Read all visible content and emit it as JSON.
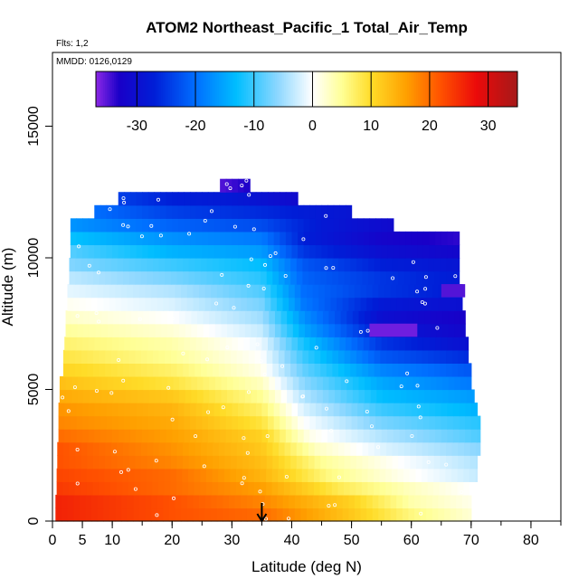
{
  "chart_data": {
    "type": "heatmap",
    "title": "ATOM2 Northeast_Pacific_1 Total_Air_Temp",
    "annotations": {
      "flights": "Flts: 1,2",
      "dates": "MMDD: 0126,0129"
    },
    "xlabel": "Latitude (deg N)",
    "ylabel": "Altitude (m)",
    "xlim": [
      0,
      85
    ],
    "ylim": [
      0,
      17800
    ],
    "x_ticks": [
      "0",
      "5",
      "10",
      "20",
      "30",
      "40",
      "50",
      "60",
      "70",
      "80"
    ],
    "x_tick_values": [
      0,
      5,
      10,
      20,
      30,
      40,
      50,
      60,
      70,
      80
    ],
    "y_ticks": [
      "0",
      "5000",
      "10000",
      "15000"
    ],
    "y_tick_values": [
      0,
      5000,
      10000,
      15000
    ],
    "colorbar": {
      "range": [
        -37,
        35
      ],
      "tick_labels": [
        "-30",
        "-20",
        "-10",
        "0",
        "10",
        "20",
        "30"
      ],
      "tick_values": [
        -30,
        -20,
        -10,
        0,
        10,
        20,
        30
      ]
    },
    "marker_latitude": 35,
    "altitude_rows": [
      {
        "alt": 250,
        "lat_min": 0.5,
        "lat_max": 70,
        "temps": [
          [
            0.5,
            26
          ],
          [
            20,
            22
          ],
          [
            35,
            20
          ],
          [
            50,
            12
          ],
          [
            60,
            6
          ],
          [
            70,
            2
          ]
        ]
      },
      {
        "alt": 750,
        "lat_min": 0.5,
        "lat_max": 70,
        "temps": [
          [
            0.5,
            26
          ],
          [
            20,
            22
          ],
          [
            35,
            18
          ],
          [
            50,
            11
          ],
          [
            60,
            4
          ],
          [
            70,
            1
          ]
        ]
      },
      {
        "alt": 1250,
        "lat_min": 0.7,
        "lat_max": 70.5,
        "temps": [
          [
            0.5,
            24
          ],
          [
            20,
            20
          ],
          [
            35,
            16
          ],
          [
            48,
            8
          ],
          [
            60,
            3
          ],
          [
            70,
            0
          ]
        ]
      },
      {
        "alt": 1750,
        "lat_min": 0.7,
        "lat_max": 71,
        "temps": [
          [
            0.5,
            23
          ],
          [
            20,
            20
          ],
          [
            35,
            14
          ],
          [
            46,
            6
          ],
          [
            58,
            1
          ],
          [
            71,
            -3
          ]
        ]
      },
      {
        "alt": 2250,
        "lat_min": 0.8,
        "lat_max": 71,
        "temps": [
          [
            0.5,
            22
          ],
          [
            20,
            18
          ],
          [
            35,
            13
          ],
          [
            45,
            5
          ],
          [
            58,
            0
          ],
          [
            71,
            -4
          ]
        ]
      },
      {
        "alt": 2750,
        "lat_min": 0.8,
        "lat_max": 71.5,
        "temps": [
          [
            0.5,
            22
          ],
          [
            20,
            17
          ],
          [
            35,
            12
          ],
          [
            44,
            3
          ],
          [
            56,
            -2
          ],
          [
            71,
            -6
          ]
        ]
      },
      {
        "alt": 3250,
        "lat_min": 1.0,
        "lat_max": 71.5,
        "temps": [
          [
            0.5,
            20
          ],
          [
            20,
            16
          ],
          [
            35,
            11
          ],
          [
            43,
            1
          ],
          [
            55,
            -4
          ],
          [
            71,
            -9
          ]
        ]
      },
      {
        "alt": 3750,
        "lat_min": 1.0,
        "lat_max": 71.5,
        "temps": [
          [
            0.5,
            18
          ],
          [
            20,
            15
          ],
          [
            35,
            9
          ],
          [
            42,
            0
          ],
          [
            55,
            -7
          ],
          [
            71,
            -11
          ]
        ]
      },
      {
        "alt": 4250,
        "lat_min": 1.0,
        "lat_max": 71,
        "temps": [
          [
            0.5,
            17
          ],
          [
            20,
            14
          ],
          [
            35,
            7
          ],
          [
            42,
            -2
          ],
          [
            55,
            -10
          ],
          [
            71,
            -14
          ]
        ]
      },
      {
        "alt": 4750,
        "lat_min": 1.2,
        "lat_max": 70.5,
        "temps": [
          [
            0.5,
            15
          ],
          [
            20,
            12
          ],
          [
            35,
            5
          ],
          [
            42,
            -4
          ],
          [
            55,
            -13
          ],
          [
            70,
            -16
          ]
        ]
      },
      {
        "alt": 5250,
        "lat_min": 1.2,
        "lat_max": 70,
        "temps": [
          [
            0.5,
            13
          ],
          [
            20,
            9
          ],
          [
            35,
            3
          ],
          [
            42,
            -6
          ],
          [
            55,
            -15
          ],
          [
            70,
            -19
          ]
        ]
      },
      {
        "alt": 5750,
        "lat_min": 1.8,
        "lat_max": 70,
        "temps": [
          [
            0.5,
            11
          ],
          [
            20,
            7
          ],
          [
            35,
            1
          ],
          [
            42,
            -8
          ],
          [
            55,
            -18
          ],
          [
            70,
            -22
          ]
        ]
      },
      {
        "alt": 6250,
        "lat_min": 1.8,
        "lat_max": 69.5,
        "temps": [
          [
            0.5,
            9
          ],
          [
            20,
            5
          ],
          [
            35,
            0
          ],
          [
            42,
            -10
          ],
          [
            55,
            -22
          ],
          [
            70,
            -26
          ]
        ]
      },
      {
        "alt": 6750,
        "lat_min": 2.0,
        "lat_max": 69.5,
        "temps": [
          [
            0.5,
            7
          ],
          [
            20,
            4
          ],
          [
            35,
            -1
          ],
          [
            42,
            -12
          ],
          [
            55,
            -25
          ],
          [
            70,
            -30
          ]
        ]
      },
      {
        "alt": 7250,
        "lat_min": 2.2,
        "lat_max": 69,
        "temps": [
          [
            0.5,
            5
          ],
          [
            20,
            2
          ],
          [
            35,
            -3
          ],
          [
            42,
            -15
          ],
          [
            55,
            -28
          ],
          [
            70,
            -32
          ]
        ]
      },
      {
        "alt": 7750,
        "lat_min": 2.2,
        "lat_max": 69,
        "temps": [
          [
            0.5,
            3
          ],
          [
            20,
            0
          ],
          [
            35,
            -5
          ],
          [
            42,
            -17
          ],
          [
            55,
            -30
          ],
          [
            70,
            -33
          ]
        ]
      },
      {
        "alt": 8250,
        "lat_min": 2.5,
        "lat_max": 68.5,
        "temps": [
          [
            0.5,
            1
          ],
          [
            20,
            -2
          ],
          [
            35,
            -7
          ],
          [
            42,
            -19
          ],
          [
            55,
            -28
          ],
          [
            70,
            -30
          ]
        ]
      },
      {
        "alt": 8750,
        "lat_min": 2.5,
        "lat_max": 68.5,
        "temps": [
          [
            0.5,
            -1
          ],
          [
            20,
            -4
          ],
          [
            35,
            -9
          ],
          [
            42,
            -20
          ],
          [
            55,
            -25
          ],
          [
            70,
            -28
          ]
        ]
      },
      {
        "alt": 9250,
        "lat_min": 2.8,
        "lat_max": 68,
        "temps": [
          [
            0.5,
            -3
          ],
          [
            20,
            -7
          ],
          [
            35,
            -11
          ],
          [
            42,
            -21
          ],
          [
            55,
            -25
          ],
          [
            70,
            -28
          ]
        ]
      },
      {
        "alt": 9750,
        "lat_min": 2.8,
        "lat_max": 68,
        "temps": [
          [
            0.5,
            -6
          ],
          [
            20,
            -10
          ],
          [
            35,
            -13
          ],
          [
            42,
            -22
          ],
          [
            55,
            -27
          ],
          [
            70,
            -29
          ]
        ]
      },
      {
        "alt": 10250,
        "lat_min": 3.0,
        "lat_max": 68,
        "temps": [
          [
            0.5,
            -8
          ],
          [
            20,
            -14
          ],
          [
            35,
            -16
          ],
          [
            42,
            -25
          ],
          [
            55,
            -30
          ],
          [
            70,
            -32
          ]
        ]
      },
      {
        "alt": 10750,
        "lat_min": 3.0,
        "lat_max": 68,
        "temps": [
          [
            0.5,
            -12
          ],
          [
            20,
            -17
          ],
          [
            35,
            -19
          ],
          [
            42,
            -27
          ],
          [
            55,
            -32
          ],
          [
            70,
            -34
          ]
        ]
      },
      {
        "alt": 11250,
        "lat_min": 3.0,
        "lat_max": 57,
        "temps": [
          [
            0.5,
            -16
          ],
          [
            20,
            -21
          ],
          [
            35,
            -23
          ],
          [
            45,
            -28
          ],
          [
            57,
            -31
          ]
        ]
      },
      {
        "alt": 11750,
        "lat_min": 7.0,
        "lat_max": 50,
        "temps": [
          [
            7,
            -20
          ],
          [
            20,
            -24
          ],
          [
            35,
            -26
          ],
          [
            50,
            -29
          ]
        ]
      },
      {
        "alt": 12250,
        "lat_min": 11.0,
        "lat_max": 41,
        "temps": [
          [
            11,
            -24
          ],
          [
            20,
            -27
          ],
          [
            30,
            -28
          ],
          [
            41,
            -31
          ]
        ]
      },
      {
        "alt": 12750,
        "lat_min": 28.0,
        "lat_max": 33,
        "temps": [
          [
            28,
            -35
          ],
          [
            33,
            -33
          ]
        ]
      }
    ],
    "cold_spots": [
      {
        "lat_min": 53,
        "lat_max": 61,
        "alt_min": 7000,
        "alt_max": 7500,
        "temp": -36
      },
      {
        "lat_min": 65,
        "lat_max": 69,
        "alt_min": 8500,
        "alt_max": 9000,
        "temp": -35
      }
    ]
  }
}
